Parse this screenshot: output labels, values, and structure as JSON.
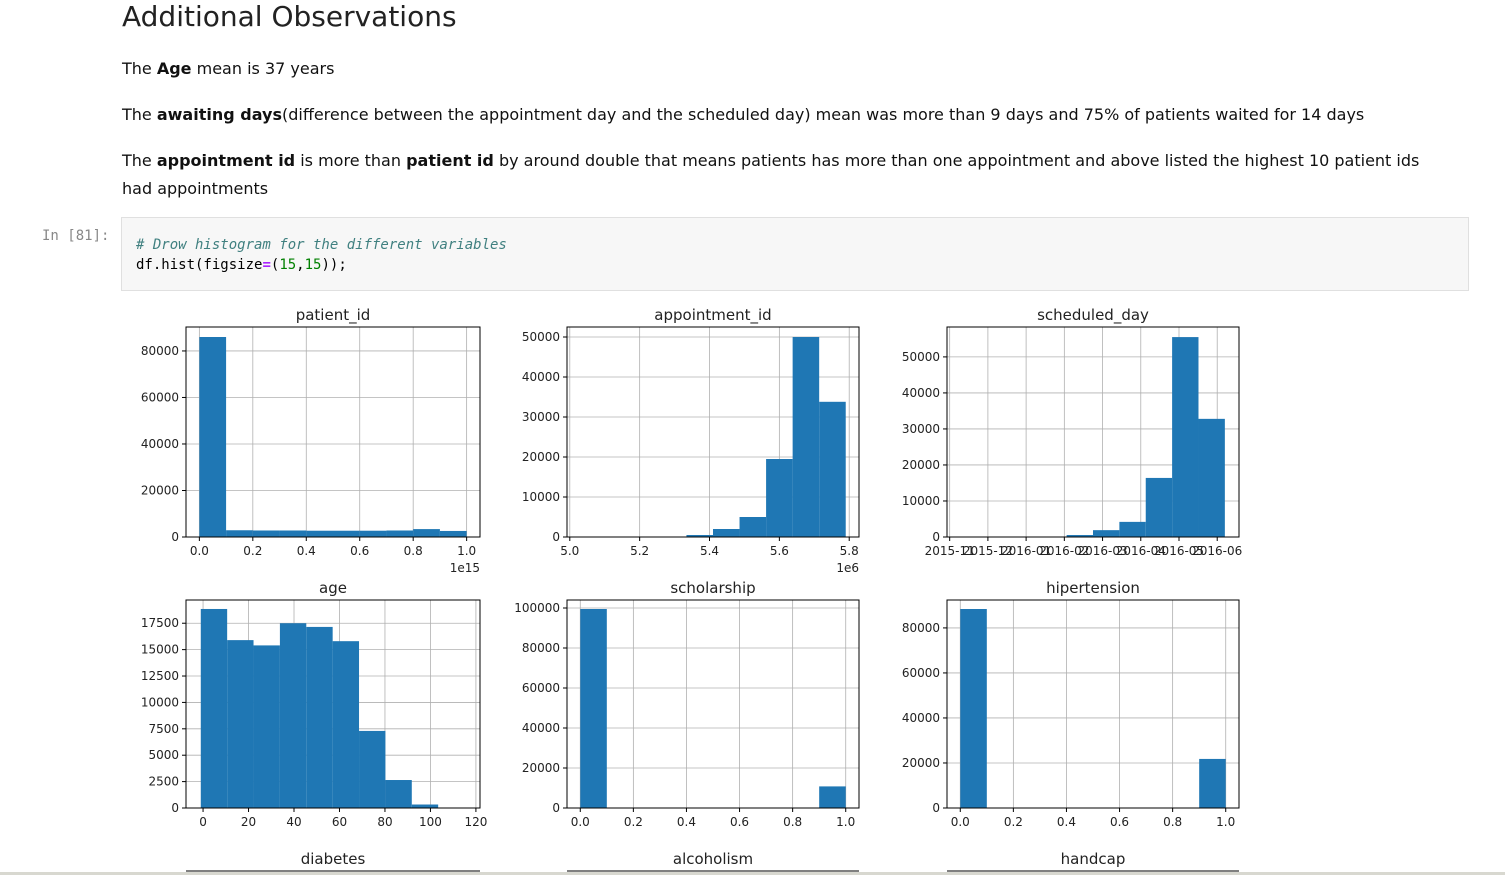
{
  "heading": "Additional Observations",
  "paragraphs": [
    [
      {
        "text": "The ",
        "bold": false
      },
      {
        "text": "Age",
        "bold": true
      },
      {
        "text": " mean is 37 years",
        "bold": false
      }
    ],
    [
      {
        "text": "The ",
        "bold": false
      },
      {
        "text": "awaiting days",
        "bold": true
      },
      {
        "text": "(difference between the appointment day and the scheduled day) mean was more than 9 days and 75% of patients waited for 14 days",
        "bold": false
      }
    ],
    [
      {
        "text": "The ",
        "bold": false
      },
      {
        "text": "appointment id",
        "bold": true
      },
      {
        "text": " is more than ",
        "bold": false
      },
      {
        "text": "patient id",
        "bold": true
      },
      {
        "text": " by around double that means patients has more than one appointment and above listed the highest 10 patient ids had appointments",
        "bold": false
      }
    ]
  ],
  "cell": {
    "prompt": "In [81]:",
    "comment": "# Drow histogram for the different variables",
    "code_tokens": [
      "df.hist(figsize",
      "=",
      "(",
      "15",
      ",",
      "15",
      "));"
    ]
  },
  "next_row_titles": [
    "diabetes",
    "alcoholism",
    "handcap"
  ],
  "chart_data": [
    {
      "type": "histogram",
      "title": "patient_id",
      "color": "#1f77b4",
      "grid": true,
      "bins": [
        0,
        0.1,
        0.2,
        0.3,
        0.4,
        0.5,
        0.6,
        0.7,
        0.8,
        0.9,
        1.0
      ],
      "values": [
        86000,
        2900,
        2800,
        2800,
        2700,
        2700,
        2700,
        2800,
        3400,
        2600
      ],
      "xlim": [
        -0.05,
        1.05
      ],
      "ylim": [
        0,
        90300
      ],
      "xticks": [
        {
          "value": 0,
          "label": "0.0"
        },
        0.2,
        0.4,
        0.6,
        0.8,
        {
          "value": 1,
          "label": "1.0"
        }
      ],
      "yticks": [
        0,
        20000,
        40000,
        60000,
        80000
      ],
      "x_offset_label": "1e15"
    },
    {
      "type": "histogram",
      "title": "appointment_id",
      "color": "#1f77b4",
      "grid": true,
      "bins": [
        5.03,
        5.106,
        5.182,
        5.258,
        5.334,
        5.41,
        5.486,
        5.562,
        5.638,
        5.714,
        5.79
      ],
      "values": [
        1,
        0,
        0,
        0,
        500,
        2000,
        5000,
        19500,
        50000,
        33800
      ],
      "xlim": [
        4.992,
        5.828
      ],
      "ylim": [
        0,
        52500
      ],
      "xticks": [
        {
          "value": 5,
          "label": "5.0"
        },
        5.2,
        5.4,
        5.6,
        5.8
      ],
      "yticks": [
        0,
        10000,
        20000,
        30000,
        40000,
        50000
      ],
      "x_offset_label": "1e6"
    },
    {
      "type": "histogram",
      "title": "scheduled_day",
      "color": "#1f77b4",
      "grid": true,
      "bins": [
        0.3,
        0.99,
        1.68,
        2.37,
        3.06,
        3.75,
        4.44,
        5.13,
        5.82,
        6.51,
        7.2
      ],
      "values": [
        1,
        0,
        0,
        60,
        550,
        1900,
        4200,
        16400,
        55500,
        32800
      ],
      "xlim": [
        -0.07,
        7.57
      ],
      "ylim": [
        0,
        58300
      ],
      "xticks": [
        {
          "value": 0,
          "label": "2015-11"
        },
        {
          "value": 1,
          "label": "2015-12"
        },
        {
          "value": 2,
          "label": "2016-01"
        },
        {
          "value": 3,
          "label": "2016-02"
        },
        {
          "value": 4,
          "label": "2016-03"
        },
        {
          "value": 5,
          "label": "2016-04"
        },
        {
          "value": 6,
          "label": "2016-05"
        },
        {
          "value": 7,
          "label": "2016-06"
        }
      ],
      "yticks": [
        0,
        10000,
        20000,
        30000,
        40000,
        50000
      ]
    },
    {
      "type": "histogram",
      "title": "age",
      "color": "#1f77b4",
      "grid": true,
      "bins": [
        -1,
        10.6,
        22.2,
        33.8,
        45.4,
        57,
        68.6,
        80.2,
        91.8,
        103.4,
        115
      ],
      "values": [
        18850,
        15900,
        15400,
        17500,
        17150,
        15800,
        7300,
        2650,
        330,
        5
      ],
      "xlim": [
        -7.5,
        121.8
      ],
      "ylim": [
        0,
        19700
      ],
      "xticks": [
        0,
        20,
        40,
        60,
        80,
        100,
        120
      ],
      "yticks": [
        0,
        2500,
        5000,
        7500,
        10000,
        12500,
        15000,
        17500
      ]
    },
    {
      "type": "histogram",
      "title": "scholarship",
      "color": "#1f77b4",
      "grid": true,
      "bins": [
        0,
        0.1,
        0.2,
        0.3,
        0.4,
        0.5,
        0.6,
        0.7,
        0.8,
        0.9,
        1.0
      ],
      "values": [
        99500,
        0,
        0,
        0,
        0,
        0,
        0,
        0,
        0,
        10800
      ],
      "xlim": [
        -0.05,
        1.05
      ],
      "ylim": [
        0,
        104000
      ],
      "xticks": [
        {
          "value": 0,
          "label": "0.0"
        },
        0.2,
        0.4,
        0.6,
        0.8,
        {
          "value": 1,
          "label": "1.0"
        }
      ],
      "yticks": [
        0,
        20000,
        40000,
        60000,
        80000,
        100000
      ]
    },
    {
      "type": "histogram",
      "title": "hipertension",
      "color": "#1f77b4",
      "grid": true,
      "bins": [
        0,
        0.1,
        0.2,
        0.3,
        0.4,
        0.5,
        0.6,
        0.7,
        0.8,
        0.9,
        1.0
      ],
      "values": [
        88400,
        0,
        0,
        0,
        0,
        0,
        0,
        0,
        0,
        21800
      ],
      "xlim": [
        -0.05,
        1.05
      ],
      "ylim": [
        0,
        92400
      ],
      "xticks": [
        {
          "value": 0,
          "label": "0.0"
        },
        0.2,
        0.4,
        0.6,
        0.8,
        {
          "value": 1,
          "label": "1.0"
        }
      ],
      "yticks": [
        0,
        20000,
        40000,
        60000,
        80000
      ]
    }
  ]
}
